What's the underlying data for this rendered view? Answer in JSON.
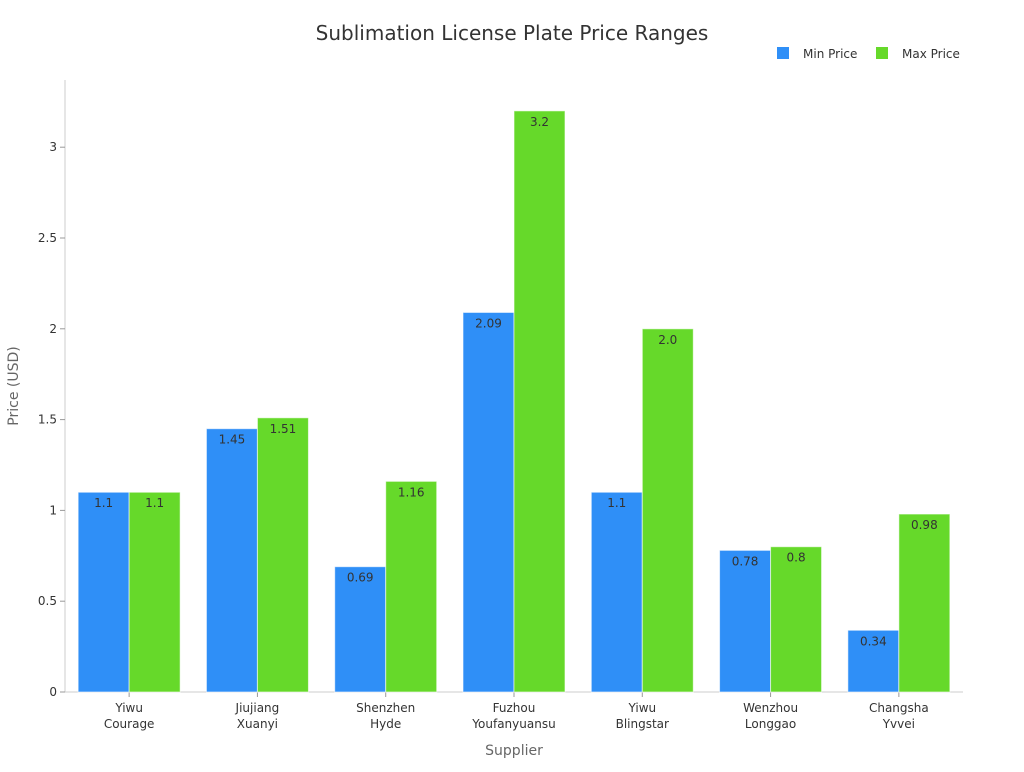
{
  "chart_data": {
    "type": "bar",
    "title": "Sublimation License Plate Price Ranges",
    "xlabel": "Supplier",
    "ylabel": "Price (USD)",
    "ylim": [
      0,
      3.37
    ],
    "yticks": [
      "0",
      "0.5",
      "1",
      "1.5",
      "2",
      "2.5",
      "3"
    ],
    "ytick_values": [
      0,
      0.5,
      1,
      1.5,
      2,
      2.5,
      3
    ],
    "legend_position": "top-right",
    "grid": false,
    "categories": [
      [
        "Yiwu",
        "Courage"
      ],
      [
        "Jiujiang",
        "Xuanyi"
      ],
      [
        "Shenzhen",
        "Hyde"
      ],
      [
        "Fuzhou",
        "Youfanyuansu"
      ],
      [
        "Yiwu",
        "Blingstar"
      ],
      [
        "Wenzhou",
        "Longgao"
      ],
      [
        "Changsha",
        "Yvvei"
      ]
    ],
    "series": [
      {
        "name": "Min Price",
        "color": "#2f8ff7",
        "values": [
          1.1,
          1.45,
          0.69,
          2.09,
          1.1,
          0.78,
          0.34
        ],
        "labels": [
          "1.1",
          "1.45",
          "0.69",
          "2.09",
          "1.1",
          "0.78",
          "0.34"
        ]
      },
      {
        "name": "Max Price",
        "color": "#66d92a",
        "values": [
          1.1,
          1.51,
          1.16,
          3.2,
          2.0,
          0.8,
          0.98
        ],
        "labels": [
          "1.1",
          "1.51",
          "1.16",
          "3.2",
          "2.0",
          "0.8",
          "0.98"
        ]
      }
    ]
  }
}
